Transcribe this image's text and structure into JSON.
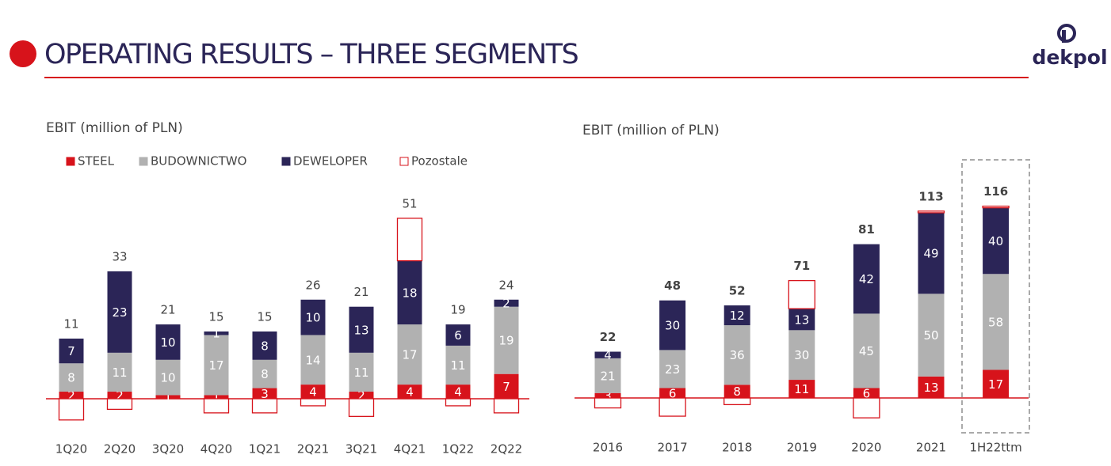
{
  "header": {
    "title": "OPERATING RESULTS – THREE SEGMENTS",
    "logo": "dekpol"
  },
  "chart_data": [
    {
      "type": "bar",
      "stacked": true,
      "title": "EBIT (million of PLN)",
      "legend": true,
      "categories": [
        "1Q20",
        "2Q20",
        "3Q20",
        "4Q20",
        "1Q21",
        "2Q21",
        "3Q21",
        "4Q21",
        "1Q22",
        "2Q22"
      ],
      "series": [
        {
          "name": "STEEL",
          "color": "#d7131b",
          "values": [
            2,
            2,
            1,
            1,
            3,
            4,
            2,
            4,
            4,
            7
          ]
        },
        {
          "name": "BUDOWNICTWO",
          "color": "#b1b1b1",
          "values": [
            8,
            11,
            10,
            17,
            8,
            14,
            11,
            17,
            11,
            19
          ]
        },
        {
          "name": "DEWELOPER",
          "color": "#2b2557",
          "values": [
            7,
            23,
            10,
            1,
            8,
            10,
            13,
            18,
            6,
            2
          ]
        },
        {
          "name": "Pozostale",
          "color": "#d7131b",
          "hollow": true,
          "values": [
            -6,
            -3,
            0,
            -4,
            -4,
            -2,
            -5,
            12,
            -2,
            -4
          ]
        }
      ],
      "totals": [
        11,
        33,
        21,
        15,
        15,
        26,
        21,
        51,
        19,
        24
      ],
      "ylim": [
        -10,
        55
      ]
    },
    {
      "type": "bar",
      "stacked": true,
      "title": "EBIT (million of PLN)",
      "legend": false,
      "categories": [
        "2016",
        "2017",
        "2018",
        "2019",
        "2020",
        "2021",
        "1H22ttm"
      ],
      "series": [
        {
          "color": "#d7131b",
          "values": [
            3,
            6,
            8,
            11,
            6,
            13,
            17
          ]
        },
        {
          "color": "#b1b1b1",
          "values": [
            21,
            23,
            36,
            30,
            45,
            50,
            58
          ]
        },
        {
          "color": "#2b2557",
          "values": [
            4,
            30,
            12,
            13,
            42,
            49,
            40
          ]
        },
        {
          "color": "#d7131b",
          "hollow": true,
          "values": [
            -6,
            -11,
            -4,
            17,
            -12,
            1,
            1
          ]
        }
      ],
      "totals": [
        22,
        48,
        52,
        71,
        81,
        113,
        116
      ],
      "ylim": [
        -15,
        120
      ]
    }
  ]
}
